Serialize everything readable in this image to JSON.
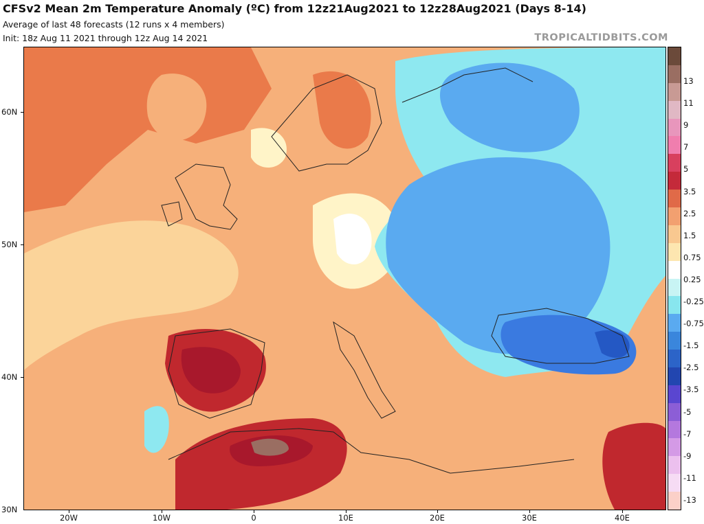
{
  "header": {
    "title": "CFSv2 Mean 2m Temperature Anomaly (ºC) from 12z21Aug2021 to 12z28Aug2021 (Days 8-14)",
    "subtitle_line1": "Average of last 48 forecasts (12 runs x 4 members)",
    "subtitle_line2": "Init: 18z Aug 11 2021 through 12z Aug 14 2021",
    "brand": "TROPICALTIDBITS.COM"
  },
  "axes": {
    "lat_labels": [
      "60N",
      "50N",
      "40N",
      "30N"
    ],
    "lon_labels": [
      "20W",
      "10W",
      "0",
      "10E",
      "20E",
      "30E",
      "40E"
    ]
  },
  "colorbar": {
    "labels": [
      "13",
      "11",
      "9",
      "7",
      "5",
      "3.5",
      "2.5",
      "1.5",
      "0.75",
      "0.25",
      "-0.25",
      "-0.75",
      "-1.5",
      "-2.5",
      "-3.5",
      "-5",
      "-7",
      "-9",
      "-11",
      "-13"
    ],
    "colors": [
      "#6b4a3a",
      "#9a6e62",
      "#c89a94",
      "#e0b8c4",
      "#e896bc",
      "#f07eae",
      "#e8608e",
      "#d8405e",
      "#c42a3a",
      "#a8182c",
      "#c63a30",
      "#e06a48",
      "#f2a070",
      "#f9c890",
      "#fde6b0",
      "#fffcd8",
      "#ffffff",
      "#c8f4f4",
      "#88e6ee",
      "#5ccce8",
      "#4aaae8",
      "#3a86dc",
      "#2c64c8",
      "#2246b0",
      "#2a3cbe",
      "#5a46d0",
      "#8c5ed6",
      "#b478de",
      "#d49ae6",
      "#ecc0ee",
      "#f6dcf4",
      "#fbe8f6"
    ],
    "colors_note_hidden": ""
  },
  "map_colors": {
    "very_warm": "#c0282e",
    "warm": "#ea7a4a",
    "mild": "#f6b07a",
    "light": "#fbd49a",
    "neutral": "#fff4c8",
    "cool_light": "#8ee8f0",
    "cool": "#5aaaf0",
    "cold": "#3a7ae0",
    "very_cold": "#2458c4"
  }
}
